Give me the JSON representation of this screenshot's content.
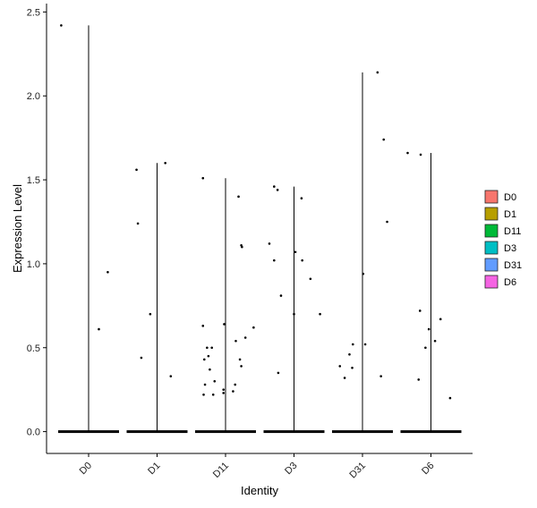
{
  "chart_data": {
    "type": "violin-jitter",
    "xlabel": "Identity",
    "ylabel": "Expression Level",
    "categories": [
      "D0",
      "D1",
      "D11",
      "D3",
      "D31",
      "D6"
    ],
    "ylim": [
      -0.13,
      2.55
    ],
    "yticks": [
      0.0,
      0.5,
      1.0,
      1.5,
      2.0,
      2.5
    ],
    "ytick_labels": [
      "0.0",
      "0.5",
      "1.0",
      "1.5",
      "2.0",
      "2.5"
    ],
    "grid": false,
    "legend": {
      "title": "",
      "placement": "right",
      "entries": [
        {
          "label": "D0",
          "color": "#F8766D"
        },
        {
          "label": "D1",
          "color": "#B79F00"
        },
        {
          "label": "D11",
          "color": "#00BA38"
        },
        {
          "label": "D3",
          "color": "#00BFC4"
        },
        {
          "label": "D31",
          "color": "#619CFF"
        },
        {
          "label": "D6",
          "color": "#F564E3"
        }
      ]
    },
    "max_values": [
      2.42,
      1.6,
      1.51,
      1.46,
      2.14,
      1.66
    ],
    "nonzero_points": [
      {
        "group": "D0",
        "points": [
          [
            -0.4,
            2.42
          ],
          [
            0.28,
            0.95
          ],
          [
            0.15,
            0.61
          ]
        ]
      },
      {
        "group": "D1",
        "points": [
          [
            -0.3,
            1.56
          ],
          [
            0.12,
            1.6
          ],
          [
            -0.28,
            1.24
          ],
          [
            -0.1,
            0.7
          ],
          [
            -0.23,
            0.44
          ],
          [
            0.2,
            0.33
          ]
        ]
      },
      {
        "group": "D11",
        "points": [
          [
            -0.33,
            1.51
          ],
          [
            0.19,
            1.4
          ],
          [
            0.23,
            1.11
          ],
          [
            0.24,
            1.1
          ],
          [
            -0.33,
            0.63
          ],
          [
            -0.02,
            0.64
          ],
          [
            0.41,
            0.62
          ],
          [
            0.29,
            0.56
          ],
          [
            0.15,
            0.54
          ],
          [
            -0.27,
            0.5
          ],
          [
            -0.2,
            0.5
          ],
          [
            -0.25,
            0.45
          ],
          [
            -0.31,
            0.43
          ],
          [
            0.21,
            0.43
          ],
          [
            0.23,
            0.39
          ],
          [
            -0.23,
            0.37
          ],
          [
            -0.3,
            0.28
          ],
          [
            -0.16,
            0.3
          ],
          [
            0.14,
            0.28
          ],
          [
            -0.03,
            0.25
          ],
          [
            0.11,
            0.24
          ],
          [
            -0.03,
            0.23
          ],
          [
            -0.32,
            0.22
          ],
          [
            -0.18,
            0.22
          ]
        ]
      },
      {
        "group": "D3",
        "points": [
          [
            -0.29,
            1.46
          ],
          [
            -0.24,
            1.44
          ],
          [
            0.11,
            1.39
          ],
          [
            -0.36,
            1.12
          ],
          [
            0.02,
            1.07
          ],
          [
            -0.29,
            1.02
          ],
          [
            0.12,
            1.02
          ],
          [
            0.24,
            0.91
          ],
          [
            -0.19,
            0.81
          ],
          [
            0.0,
            0.7
          ],
          [
            0.38,
            0.7
          ],
          [
            -0.23,
            0.35
          ]
        ]
      },
      {
        "group": "D31",
        "points": [
          [
            0.22,
            2.14
          ],
          [
            0.31,
            1.74
          ],
          [
            0.36,
            1.25
          ],
          [
            0.01,
            0.94
          ],
          [
            -0.14,
            0.52
          ],
          [
            0.04,
            0.52
          ],
          [
            -0.19,
            0.46
          ],
          [
            -0.33,
            0.39
          ],
          [
            -0.15,
            0.38
          ],
          [
            0.27,
            0.33
          ],
          [
            -0.26,
            0.32
          ]
        ]
      },
      {
        "group": "D6",
        "points": [
          [
            -0.34,
            1.66
          ],
          [
            -0.15,
            1.65
          ],
          [
            -0.16,
            0.72
          ],
          [
            0.14,
            0.67
          ],
          [
            -0.03,
            0.61
          ],
          [
            0.06,
            0.54
          ],
          [
            -0.08,
            0.5
          ],
          [
            -0.18,
            0.31
          ],
          [
            0.28,
            0.2
          ]
        ]
      }
    ]
  }
}
